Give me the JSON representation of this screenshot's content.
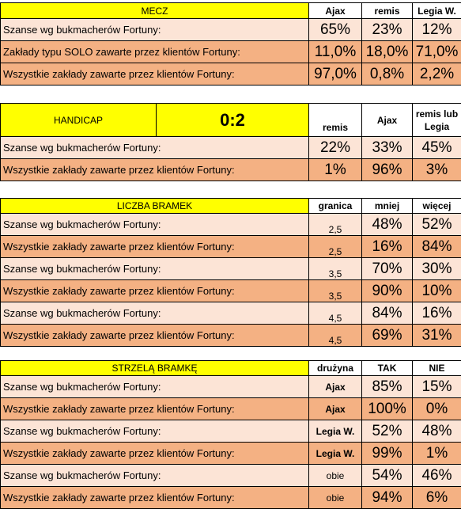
{
  "mecz": {
    "title": "MECZ",
    "headers": [
      "Ajax",
      "remis",
      "Legia W."
    ],
    "rows": [
      {
        "label": "Szanse wg bukmacherów Fortuny:",
        "values": [
          "65%",
          "23%",
          "12%"
        ]
      },
      {
        "label": "Zakłady typu SOLO zawarte przez klientów Fortuny:",
        "values": [
          "11,0%",
          "18,0%",
          "71,0%"
        ]
      },
      {
        "label": "Wszystkie zakłady zawarte przez klientów Fortuny:",
        "values": [
          "97,0%",
          "0,8%",
          "2,2%"
        ]
      }
    ]
  },
  "handicap": {
    "title": "HANDICAP",
    "score": "0:2",
    "headers": [
      "remis",
      "Ajax",
      "remis lub Legia"
    ],
    "rows": [
      {
        "label": "Szanse wg bukmacherów Fortuny:",
        "values": [
          "22%",
          "33%",
          "45%"
        ]
      },
      {
        "label": "Wszystkie zakłady zawarte przez klientów Fortuny:",
        "values": [
          "1%",
          "96%",
          "3%"
        ]
      }
    ]
  },
  "bramki": {
    "title": "LICZBA BRAMEK",
    "headers": [
      "granica",
      "mniej",
      "więcej"
    ],
    "rows": [
      {
        "label": "Szanse wg bukmacherów Fortuny:",
        "limit": "2,5",
        "values": [
          "48%",
          "52%"
        ]
      },
      {
        "label": "Wszystkie zakłady zawarte przez klientów Fortuny:",
        "limit": "2,5",
        "values": [
          "16%",
          "84%"
        ]
      },
      {
        "label": "Szanse wg bukmacherów Fortuny:",
        "limit": "3,5",
        "values": [
          "70%",
          "30%"
        ]
      },
      {
        "label": "Wszystkie zakłady zawarte przez klientów Fortuny:",
        "limit": "3,5",
        "values": [
          "90%",
          "10%"
        ]
      },
      {
        "label": "Szanse wg bukmacherów Fortuny:",
        "limit": "4,5",
        "values": [
          "84%",
          "16%"
        ]
      },
      {
        "label": "Wszystkie zakłady zawarte przez klientów Fortuny:",
        "limit": "4,5",
        "values": [
          "69%",
          "31%"
        ]
      }
    ]
  },
  "strzela": {
    "title": "STRZELĄ BRAMKĘ",
    "headers": [
      "drużyna",
      "TAK",
      "NIE"
    ],
    "rows": [
      {
        "label": "Szanse wg bukmacherów Fortuny:",
        "team": "Ajax",
        "team_bold": true,
        "values": [
          "85%",
          "15%"
        ]
      },
      {
        "label": "Wszystkie zakłady zawarte przez klientów Fortuny:",
        "team": "Ajax",
        "team_bold": true,
        "values": [
          "100%",
          "0%"
        ]
      },
      {
        "label": "Szanse wg bukmacherów Fortuny:",
        "team": "Legia W.",
        "team_bold": true,
        "values": [
          "52%",
          "48%"
        ]
      },
      {
        "label": "Wszystkie zakłady zawarte przez klientów Fortuny:",
        "team": "Legia W.",
        "team_bold": true,
        "values": [
          "99%",
          "1%"
        ]
      },
      {
        "label": "Szanse wg bukmacherów Fortuny:",
        "team": "obie",
        "team_bold": false,
        "values": [
          "54%",
          "46%"
        ]
      },
      {
        "label": "Wszystkie zakłady zawarte przez klientów Fortuny:",
        "team": "obie",
        "team_bold": false,
        "values": [
          "94%",
          "6%"
        ]
      }
    ]
  },
  "colors": {
    "header_yellow": "#ffff00",
    "row_light": "#fce4d6",
    "row_dark": "#f4b183"
  }
}
